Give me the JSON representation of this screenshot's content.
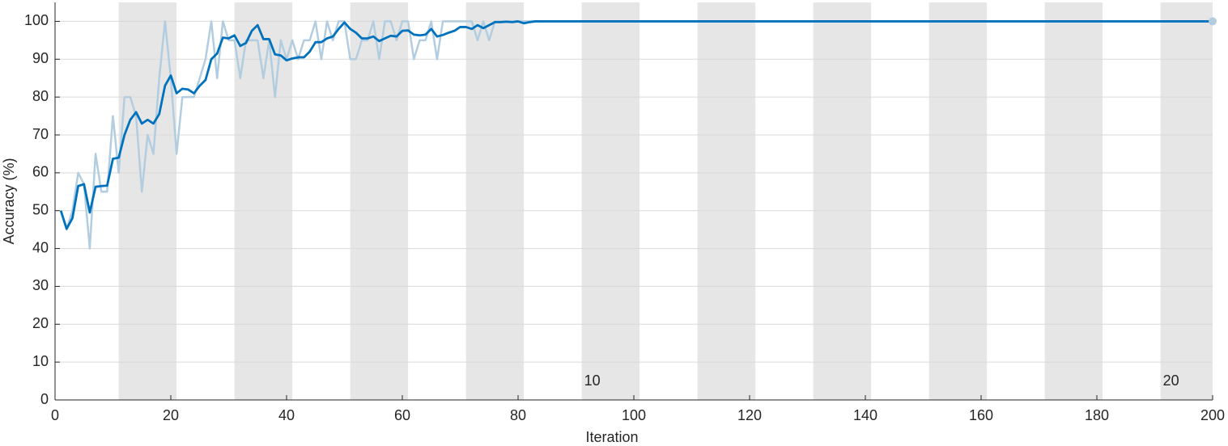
{
  "chart_data": {
    "type": "line",
    "xlabel": "Iteration",
    "ylabel": "Accuracy (%)",
    "x": [
      1,
      2,
      3,
      4,
      5,
      6,
      7,
      8,
      9,
      10,
      11,
      12,
      13,
      14,
      15,
      16,
      17,
      18,
      19,
      20,
      21,
      22,
      23,
      24,
      25,
      26,
      27,
      28,
      29,
      30,
      31,
      32,
      33,
      34,
      35,
      36,
      37,
      38,
      39,
      40,
      41,
      42,
      43,
      44,
      45,
      46,
      47,
      48,
      49,
      50,
      51,
      52,
      53,
      54,
      55,
      56,
      57,
      58,
      59,
      60,
      61,
      62,
      63,
      64,
      65,
      66,
      67,
      68,
      69,
      70,
      71,
      72,
      73,
      74,
      75,
      76,
      77,
      78,
      79,
      80,
      81,
      82,
      83,
      84,
      85,
      86,
      87,
      88,
      89,
      90,
      91,
      92,
      93,
      94,
      95,
      96,
      97,
      98,
      99,
      100,
      101,
      102,
      103,
      104,
      105,
      106,
      107,
      108,
      109,
      110,
      111,
      112,
      113,
      114,
      115,
      116,
      117,
      118,
      119,
      120,
      121,
      122,
      123,
      124,
      125,
      126,
      127,
      128,
      129,
      130,
      131,
      132,
      133,
      134,
      135,
      136,
      137,
      138,
      139,
      140,
      141,
      142,
      143,
      144,
      145,
      146,
      147,
      148,
      149,
      150,
      151,
      152,
      153,
      154,
      155,
      156,
      157,
      158,
      159,
      160,
      161,
      162,
      163,
      164,
      165,
      166,
      167,
      168,
      169,
      170,
      171,
      172,
      173,
      174,
      175,
      176,
      177,
      178,
      179,
      180,
      181,
      182,
      183,
      184,
      185,
      186,
      187,
      188,
      189,
      190,
      191,
      192,
      193,
      194,
      195,
      196,
      197,
      198,
      199,
      200
    ],
    "series": [
      {
        "color": "#b3cde0",
        "values": [
          50,
          45,
          50,
          60,
          57,
          40,
          65,
          55,
          55,
          75,
          60,
          80,
          80,
          75,
          55,
          70,
          65,
          85,
          100,
          85,
          65,
          80,
          80,
          80,
          85,
          90,
          100,
          85,
          100,
          95,
          95,
          85,
          95,
          95,
          95,
          85,
          95,
          80,
          95,
          90,
          95,
          90,
          95,
          95,
          100,
          90,
          100,
          95,
          100,
          100,
          90,
          90,
          95,
          95,
          100,
          90,
          100,
          100,
          95,
          100,
          100,
          90,
          95,
          95,
          100,
          90,
          100,
          100,
          100,
          100,
          100,
          100,
          95,
          100,
          95,
          100,
          100,
          100,
          100,
          100,
          100,
          100,
          100,
          100,
          100,
          100,
          100,
          100,
          100,
          100,
          100,
          100,
          100,
          100,
          100,
          100,
          100,
          100,
          100,
          100,
          100,
          100,
          100,
          100,
          100,
          100,
          100,
          100,
          100,
          100,
          100,
          100,
          100,
          100,
          100,
          100,
          100,
          100,
          100,
          100,
          100,
          100,
          100,
          100,
          100,
          100,
          100,
          100,
          100,
          100,
          100,
          100,
          100,
          100,
          100,
          100,
          100,
          100,
          100,
          100,
          100,
          100,
          100,
          100,
          100,
          100,
          100,
          100,
          100,
          100,
          100,
          100,
          100,
          100,
          100,
          100,
          100,
          100,
          100,
          100,
          100,
          100,
          100,
          100,
          100,
          100,
          100,
          100,
          100,
          100,
          100,
          100,
          100,
          100,
          100,
          100,
          100,
          100,
          100,
          100,
          100,
          100,
          100,
          100,
          100,
          100,
          100,
          100,
          100,
          100,
          100,
          100,
          100,
          100,
          100,
          100,
          100,
          100,
          100,
          100
        ]
      },
      {
        "color": "#0072bd",
        "values": [
          50,
          45.2,
          48,
          56.5,
          57,
          49.5,
          56.3,
          56.5,
          56.6,
          63.7,
          64,
          70,
          74,
          76,
          73,
          74,
          73,
          75.5,
          83,
          85.7,
          81,
          82.2,
          82,
          81,
          83,
          84.5,
          90,
          91.5,
          95.7,
          95.5,
          96.3,
          93.5,
          94.3,
          97.5,
          99,
          95.3,
          95.3,
          91.3,
          91,
          89.7,
          90.2,
          90.5,
          90.5,
          92,
          94.5,
          94.5,
          95.5,
          96,
          98,
          99.7,
          98,
          97,
          95.5,
          95.5,
          96,
          94.8,
          95.5,
          96.2,
          96,
          97.5,
          97.6,
          96.5,
          96.3,
          96.5,
          98,
          96,
          96.4,
          97,
          97.5,
          98.5,
          98.5,
          98,
          99,
          98.2,
          99,
          99.8,
          99.8,
          99.9,
          99.8,
          100,
          99.5,
          99.8,
          100,
          100,
          100,
          100,
          100,
          100,
          100,
          100,
          100,
          100,
          100,
          100,
          100,
          100,
          100,
          100,
          100,
          100,
          100,
          100,
          100,
          100,
          100,
          100,
          100,
          100,
          100,
          100,
          100,
          100,
          100,
          100,
          100,
          100,
          100,
          100,
          100,
          100,
          100,
          100,
          100,
          100,
          100,
          100,
          100,
          100,
          100,
          100,
          100,
          100,
          100,
          100,
          100,
          100,
          100,
          100,
          100,
          100,
          100,
          100,
          100,
          100,
          100,
          100,
          100,
          100,
          100,
          100,
          100,
          100,
          100,
          100,
          100,
          100,
          100,
          100,
          100,
          100,
          100,
          100,
          100,
          100,
          100,
          100,
          100,
          100,
          100,
          100,
          100,
          100,
          100,
          100,
          100,
          100,
          100,
          100,
          100,
          100,
          100,
          100,
          100,
          100,
          100,
          100,
          100,
          100,
          100,
          100,
          100,
          100,
          100,
          100,
          100,
          100,
          100,
          100,
          100,
          100
        ]
      }
    ],
    "epoch_shading": [
      [
        11,
        21
      ],
      [
        31,
        41
      ],
      [
        51,
        61
      ],
      [
        71,
        81
      ],
      [
        91,
        101
      ],
      [
        111,
        121
      ],
      [
        131,
        141
      ],
      [
        151,
        161
      ],
      [
        171,
        181
      ],
      [
        191,
        201
      ]
    ],
    "epoch_labels": [
      {
        "value": 91,
        "label": "10"
      },
      {
        "value": 191,
        "label": "20"
      }
    ],
    "xlim": [
      0,
      200
    ],
    "xticks": [
      0,
      20,
      40,
      60,
      80,
      100,
      120,
      140,
      160,
      180,
      200
    ],
    "ylim": [
      0,
      105
    ],
    "yticks": [
      0,
      10,
      20,
      30,
      40,
      50,
      60,
      70,
      80,
      90,
      100
    ],
    "grid": true
  }
}
